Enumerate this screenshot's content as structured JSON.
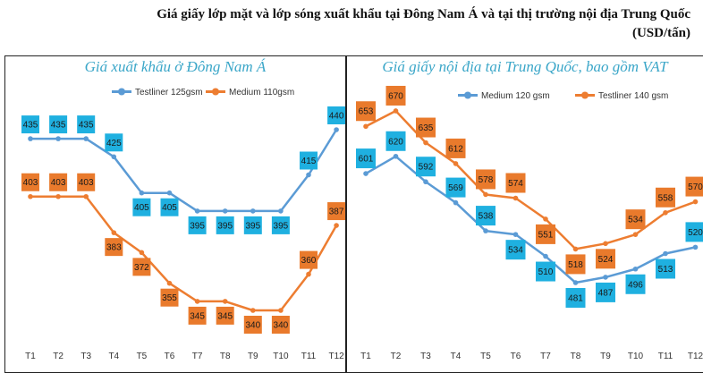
{
  "title": {
    "line1": "Giá giấy lớp mặt và lớp sóng xuất khẩu tại Đông Nam Á và tại thị trường nội địa Trung Quốc",
    "line2": "(USD/tấn)"
  },
  "colors": {
    "blue": "#5b9bd5",
    "orange": "#ed7d31",
    "blue_label": "#1fb0e0",
    "orange_label": "#e97a2c"
  },
  "chart_data": [
    {
      "type": "line",
      "title": "Giá xuất khẩu ở Đông Nam Á",
      "categories": [
        "T1",
        "T2",
        "T3",
        "T4",
        "T5",
        "T6",
        "T7",
        "T8",
        "T9",
        "T10",
        "T11",
        "T12"
      ],
      "series": [
        {
          "name": "Testliner 125gsm",
          "color": "#5b9bd5",
          "values": [
            435,
            435,
            435,
            425,
            405,
            405,
            395,
            395,
            395,
            395,
            415,
            440
          ]
        },
        {
          "name": "Medium 110gsm",
          "color": "#ed7d31",
          "values": [
            403,
            403,
            403,
            383,
            372,
            355,
            345,
            345,
            340,
            340,
            360,
            387
          ]
        }
      ],
      "legend": "top"
    },
    {
      "type": "line",
      "title": "Giá giấy nội địa tại Trung Quốc, bao gồm VAT",
      "categories": [
        "T1",
        "T2",
        "T3",
        "T4",
        "T5",
        "T6",
        "T7",
        "T8",
        "T9",
        "T10",
        "T11",
        "T12"
      ],
      "series": [
        {
          "name": "Medium 120 gsm",
          "color": "#5b9bd5",
          "values": [
            601,
            620,
            592,
            569,
            538,
            534,
            510,
            481,
            487,
            496,
            513,
            520
          ]
        },
        {
          "name": "Testliner 140 gsm",
          "color": "#ed7d31",
          "values": [
            653,
            670,
            635,
            612,
            578,
            574,
            551,
            518,
            524,
            534,
            558,
            570
          ]
        }
      ],
      "legend": "top"
    }
  ]
}
